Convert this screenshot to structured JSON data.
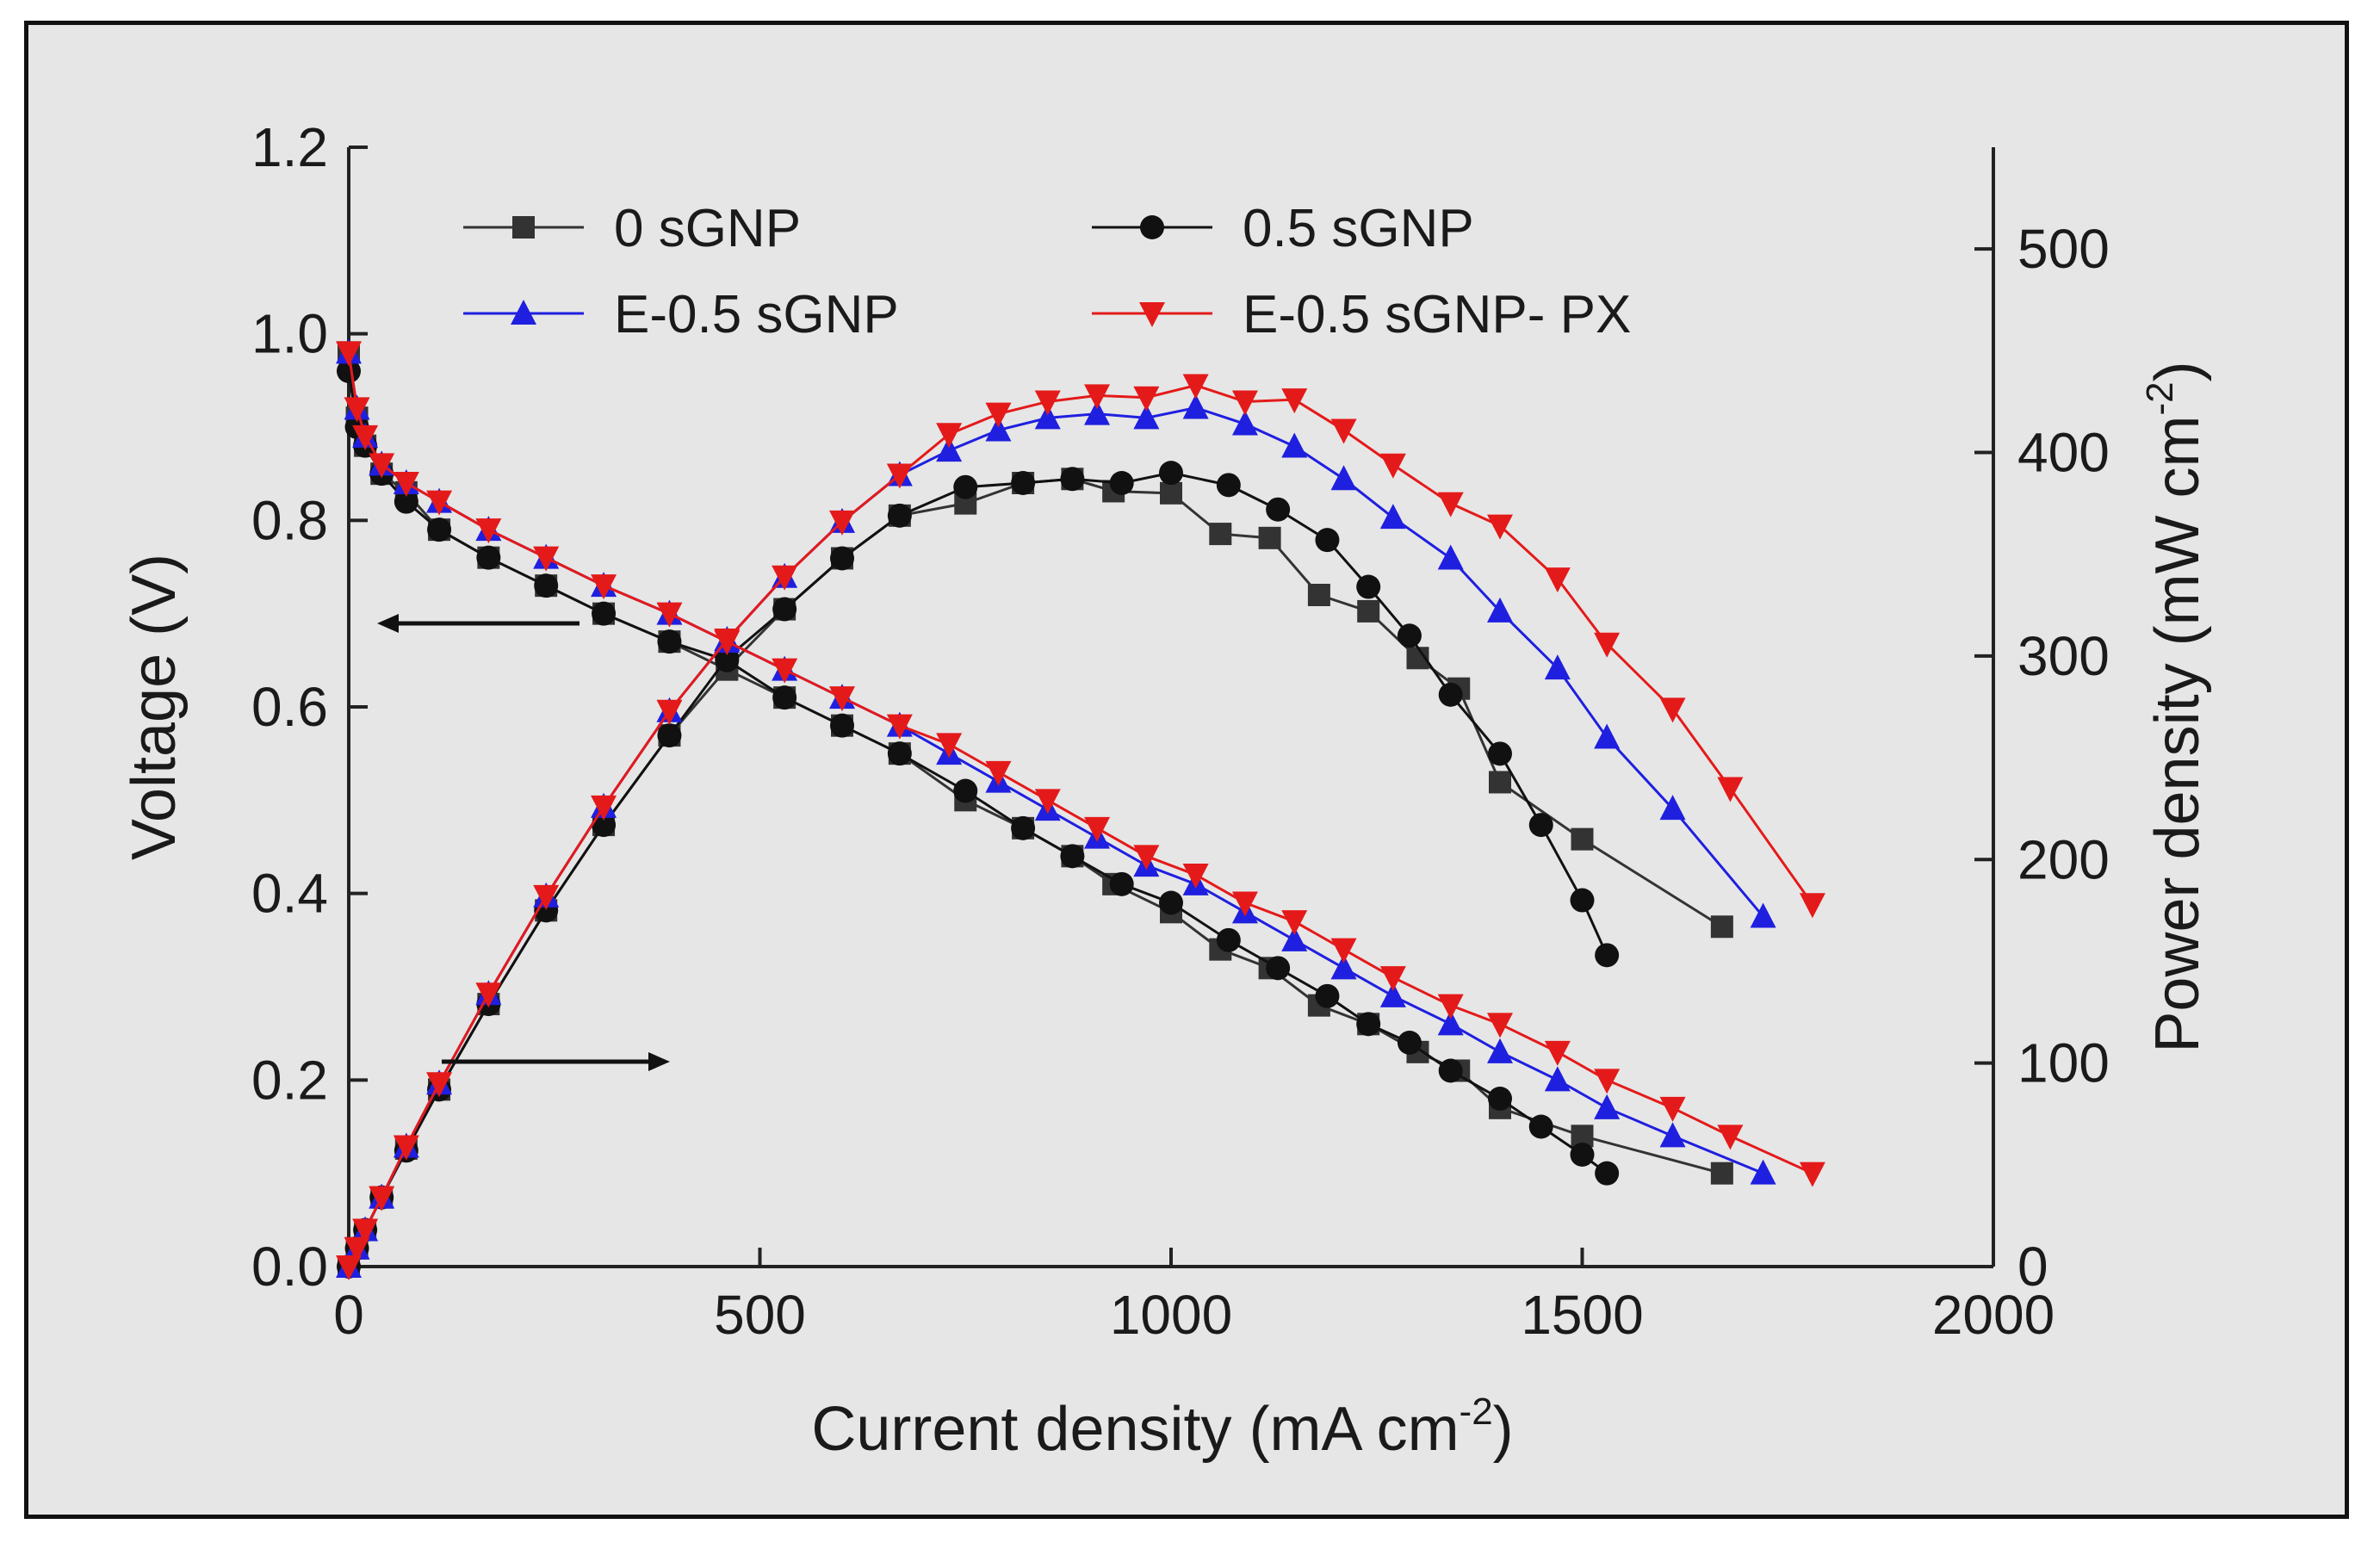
{
  "chart_data": {
    "type": "line",
    "xlabel": "Current density (mA cm",
    "xlabel_sup": "-2",
    "xlabel_end": ")",
    "ylabel": "Voltage (V)",
    "y2label": "Power density (mW cm",
    "y2label_sup": "-2",
    "y2label_end": ")",
    "xlim": [
      0,
      2000
    ],
    "ylim": [
      0.0,
      1.2
    ],
    "y2lim": [
      0,
      550
    ],
    "x_ticks": [
      0,
      500,
      1000,
      1500,
      2000
    ],
    "y_ticks": [
      "0.0",
      "0.2",
      "0.4",
      "0.6",
      "0.8",
      "1.0",
      "1.2"
    ],
    "y2_ticks": [
      0,
      100,
      200,
      300,
      400,
      500
    ],
    "grid": false,
    "legend_position": "top-left",
    "series": [
      {
        "name": "0 sGNP",
        "color": "#333333",
        "marker": "square",
        "voltage": [
          [
            0,
            0.98
          ],
          [
            10,
            0.91
          ],
          [
            20,
            0.88
          ],
          [
            40,
            0.85
          ],
          [
            70,
            0.83
          ],
          [
            110,
            0.79
          ],
          [
            170,
            0.76
          ],
          [
            240,
            0.73
          ],
          [
            310,
            0.7
          ],
          [
            390,
            0.67
          ],
          [
            460,
            0.64
          ],
          [
            530,
            0.61
          ],
          [
            600,
            0.58
          ],
          [
            670,
            0.55
          ],
          [
            750,
            0.5
          ],
          [
            820,
            0.47
          ],
          [
            880,
            0.44
          ],
          [
            930,
            0.41
          ],
          [
            1000,
            0.38
          ],
          [
            1060,
            0.34
          ],
          [
            1120,
            0.32
          ],
          [
            1180,
            0.28
          ],
          [
            1240,
            0.26
          ],
          [
            1300,
            0.23
          ],
          [
            1350,
            0.21
          ],
          [
            1400,
            0.17
          ],
          [
            1500,
            0.14
          ],
          [
            1670,
            0.1
          ]
        ],
        "power": [
          [
            0,
            0
          ],
          [
            10,
            9
          ],
          [
            20,
            18
          ],
          [
            40,
            34
          ],
          [
            70,
            58
          ],
          [
            110,
            87
          ],
          [
            170,
            129
          ],
          [
            240,
            175
          ],
          [
            310,
            217
          ],
          [
            390,
            261
          ],
          [
            460,
            294
          ],
          [
            530,
            323
          ],
          [
            600,
            348
          ],
          [
            670,
            369
          ],
          [
            750,
            375
          ],
          [
            820,
            385
          ],
          [
            880,
            387
          ],
          [
            930,
            381
          ],
          [
            1000,
            380
          ],
          [
            1060,
            360
          ],
          [
            1120,
            358
          ],
          [
            1180,
            330
          ],
          [
            1240,
            322
          ],
          [
            1300,
            299
          ],
          [
            1350,
            284
          ],
          [
            1400,
            238
          ],
          [
            1500,
            210
          ],
          [
            1670,
            167
          ]
        ]
      },
      {
        "name": "0.5 sGNP",
        "color": "#111111",
        "marker": "circle",
        "voltage": [
          [
            0,
            0.96
          ],
          [
            10,
            0.9
          ],
          [
            20,
            0.88
          ],
          [
            40,
            0.85
          ],
          [
            70,
            0.82
          ],
          [
            110,
            0.79
          ],
          [
            170,
            0.76
          ],
          [
            240,
            0.73
          ],
          [
            310,
            0.7
          ],
          [
            390,
            0.67
          ],
          [
            460,
            0.65
          ],
          [
            530,
            0.61
          ],
          [
            600,
            0.58
          ],
          [
            670,
            0.55
          ],
          [
            750,
            0.51
          ],
          [
            820,
            0.47
          ],
          [
            880,
            0.44
          ],
          [
            940,
            0.41
          ],
          [
            1000,
            0.39
          ],
          [
            1070,
            0.35
          ],
          [
            1130,
            0.32
          ],
          [
            1190,
            0.29
          ],
          [
            1240,
            0.26
          ],
          [
            1290,
            0.24
          ],
          [
            1340,
            0.21
          ],
          [
            1400,
            0.18
          ],
          [
            1450,
            0.15
          ],
          [
            1500,
            0.12
          ],
          [
            1530,
            0.1
          ]
        ],
        "power": [
          [
            0,
            0
          ],
          [
            10,
            9
          ],
          [
            20,
            18
          ],
          [
            40,
            34
          ],
          [
            70,
            57
          ],
          [
            110,
            87
          ],
          [
            170,
            129
          ],
          [
            240,
            175
          ],
          [
            310,
            217
          ],
          [
            390,
            261
          ],
          [
            460,
            299
          ],
          [
            530,
            323
          ],
          [
            600,
            348
          ],
          [
            670,
            369
          ],
          [
            750,
            383
          ],
          [
            820,
            385
          ],
          [
            880,
            387
          ],
          [
            940,
            385
          ],
          [
            1000,
            390
          ],
          [
            1070,
            384
          ],
          [
            1130,
            372
          ],
          [
            1190,
            357
          ],
          [
            1240,
            334
          ],
          [
            1290,
            310
          ],
          [
            1340,
            281
          ],
          [
            1400,
            252
          ],
          [
            1450,
            217
          ],
          [
            1500,
            180
          ],
          [
            1530,
            153
          ]
        ]
      },
      {
        "name": "E-0.5 sGNP",
        "color": "#1f1fe0",
        "marker": "triangle-up",
        "voltage": [
          [
            0,
            0.98
          ],
          [
            10,
            0.92
          ],
          [
            20,
            0.89
          ],
          [
            40,
            0.86
          ],
          [
            70,
            0.84
          ],
          [
            110,
            0.82
          ],
          [
            170,
            0.79
          ],
          [
            240,
            0.76
          ],
          [
            310,
            0.73
          ],
          [
            390,
            0.7
          ],
          [
            460,
            0.67
          ],
          [
            530,
            0.64
          ],
          [
            600,
            0.61
          ],
          [
            670,
            0.58
          ],
          [
            730,
            0.55
          ],
          [
            790,
            0.52
          ],
          [
            850,
            0.49
          ],
          [
            910,
            0.46
          ],
          [
            970,
            0.43
          ],
          [
            1030,
            0.41
          ],
          [
            1090,
            0.38
          ],
          [
            1150,
            0.35
          ],
          [
            1210,
            0.32
          ],
          [
            1270,
            0.29
          ],
          [
            1340,
            0.26
          ],
          [
            1400,
            0.23
          ],
          [
            1470,
            0.2
          ],
          [
            1530,
            0.17
          ],
          [
            1610,
            0.14
          ],
          [
            1720,
            0.1
          ]
        ],
        "power": [
          [
            0,
            0
          ],
          [
            10,
            9
          ],
          [
            20,
            18
          ],
          [
            40,
            34
          ],
          [
            70,
            59
          ],
          [
            110,
            90
          ],
          [
            170,
            134
          ],
          [
            240,
            182
          ],
          [
            310,
            226
          ],
          [
            390,
            273
          ],
          [
            460,
            308
          ],
          [
            530,
            339
          ],
          [
            600,
            366
          ],
          [
            670,
            389
          ],
          [
            730,
            401
          ],
          [
            790,
            411
          ],
          [
            850,
            417
          ],
          [
            910,
            419
          ],
          [
            970,
            417
          ],
          [
            1030,
            422
          ],
          [
            1090,
            414
          ],
          [
            1150,
            403
          ],
          [
            1210,
            387
          ],
          [
            1270,
            368
          ],
          [
            1340,
            348
          ],
          [
            1400,
            322
          ],
          [
            1470,
            294
          ],
          [
            1530,
            260
          ],
          [
            1610,
            225
          ],
          [
            1720,
            172
          ]
        ]
      },
      {
        "name": "E-0.5 sGNP- PX",
        "color": "#e41a1a",
        "marker": "triangle-down",
        "voltage": [
          [
            0,
            0.98
          ],
          [
            10,
            0.92
          ],
          [
            20,
            0.89
          ],
          [
            40,
            0.86
          ],
          [
            70,
            0.84
          ],
          [
            110,
            0.82
          ],
          [
            170,
            0.79
          ],
          [
            240,
            0.76
          ],
          [
            310,
            0.73
          ],
          [
            390,
            0.7
          ],
          [
            460,
            0.67
          ],
          [
            530,
            0.64
          ],
          [
            600,
            0.61
          ],
          [
            670,
            0.58
          ],
          [
            730,
            0.56
          ],
          [
            790,
            0.53
          ],
          [
            850,
            0.5
          ],
          [
            910,
            0.47
          ],
          [
            970,
            0.44
          ],
          [
            1030,
            0.42
          ],
          [
            1090,
            0.39
          ],
          [
            1150,
            0.37
          ],
          [
            1210,
            0.34
          ],
          [
            1270,
            0.31
          ],
          [
            1340,
            0.28
          ],
          [
            1400,
            0.26
          ],
          [
            1470,
            0.23
          ],
          [
            1530,
            0.2
          ],
          [
            1610,
            0.17
          ],
          [
            1680,
            0.14
          ],
          [
            1780,
            0.1
          ]
        ],
        "power": [
          [
            0,
            0
          ],
          [
            10,
            9
          ],
          [
            20,
            18
          ],
          [
            40,
            34
          ],
          [
            70,
            59
          ],
          [
            110,
            90
          ],
          [
            170,
            134
          ],
          [
            240,
            182
          ],
          [
            310,
            226
          ],
          [
            390,
            273
          ],
          [
            460,
            308
          ],
          [
            530,
            339
          ],
          [
            600,
            366
          ],
          [
            670,
            389
          ],
          [
            730,
            409
          ],
          [
            790,
            419
          ],
          [
            850,
            425
          ],
          [
            910,
            428
          ],
          [
            970,
            427
          ],
          [
            1030,
            433
          ],
          [
            1090,
            425
          ],
          [
            1150,
            426
          ],
          [
            1210,
            411
          ],
          [
            1270,
            394
          ],
          [
            1340,
            375
          ],
          [
            1400,
            364
          ],
          [
            1470,
            338
          ],
          [
            1530,
            306
          ],
          [
            1610,
            274
          ],
          [
            1680,
            235
          ],
          [
            1780,
            178
          ]
        ]
      }
    ]
  }
}
